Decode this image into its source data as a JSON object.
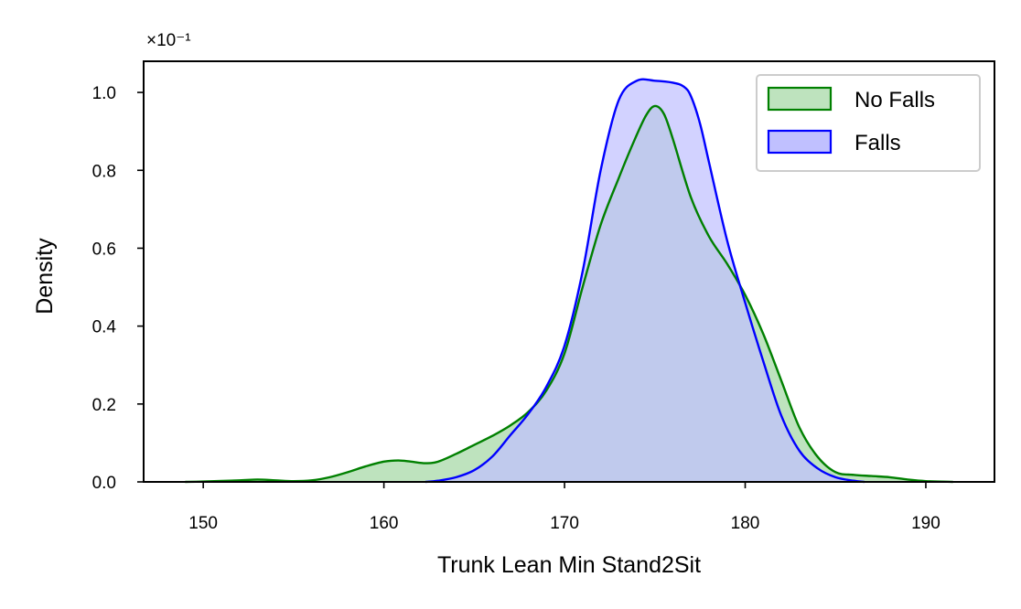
{
  "chart_data": {
    "type": "area",
    "title": "",
    "xlabel": "Trunk Lean Min Stand2Sit",
    "ylabel": "Density",
    "y_scale_factor_label": "×10⁻¹",
    "xlim": [
      146.7,
      193.8
    ],
    "ylim": [
      0,
      1.08
    ],
    "x_ticks": [
      150,
      160,
      170,
      180,
      190
    ],
    "y_ticks": [
      0.0,
      0.2,
      0.4,
      0.6,
      0.8,
      1.0
    ],
    "x_tick_labels": [
      "150",
      "160",
      "170",
      "180",
      "190"
    ],
    "y_tick_labels": [
      "0.0",
      "0.2",
      "0.4",
      "0.6",
      "0.8",
      "1.0"
    ],
    "grid": false,
    "legend_position": "top-right",
    "series": [
      {
        "name": "No Falls",
        "edge_color": "#008000",
        "fill_color": "#BEE3BE",
        "x": [
          149,
          150,
          152,
          153,
          154,
          155,
          156,
          157,
          158,
          159,
          160,
          160.8,
          161.5,
          162.3,
          163,
          164,
          165,
          166,
          167,
          168,
          169,
          170,
          171,
          172,
          173,
          173.8,
          174.5,
          175,
          175.5,
          176,
          177,
          178,
          179,
          180,
          181,
          182,
          183,
          184,
          185,
          186,
          187,
          188,
          189,
          190,
          191.5
        ],
        "y": [
          0.0,
          0.001,
          0.004,
          0.006,
          0.004,
          0.002,
          0.004,
          0.012,
          0.025,
          0.04,
          0.052,
          0.055,
          0.052,
          0.048,
          0.052,
          0.072,
          0.095,
          0.118,
          0.145,
          0.18,
          0.235,
          0.33,
          0.5,
          0.66,
          0.78,
          0.87,
          0.94,
          0.965,
          0.945,
          0.88,
          0.73,
          0.63,
          0.56,
          0.48,
          0.38,
          0.26,
          0.14,
          0.065,
          0.025,
          0.018,
          0.015,
          0.012,
          0.006,
          0.002,
          0.0
        ]
      },
      {
        "name": "Falls",
        "edge_color": "#0000FF",
        "fill_color": "#C0C0FF",
        "x": [
          162.3,
          163,
          164,
          165,
          166,
          167,
          168,
          169,
          170,
          171,
          172,
          173,
          174,
          175,
          176,
          176.6,
          177,
          177.5,
          178,
          179,
          180,
          181,
          182,
          183,
          184,
          185,
          186,
          186.6
        ],
        "y": [
          0.0,
          0.003,
          0.012,
          0.03,
          0.065,
          0.12,
          0.175,
          0.245,
          0.35,
          0.54,
          0.8,
          0.98,
          1.03,
          1.03,
          1.025,
          1.015,
          0.99,
          0.92,
          0.82,
          0.62,
          0.46,
          0.31,
          0.17,
          0.08,
          0.035,
          0.012,
          0.003,
          0.0
        ]
      }
    ]
  }
}
